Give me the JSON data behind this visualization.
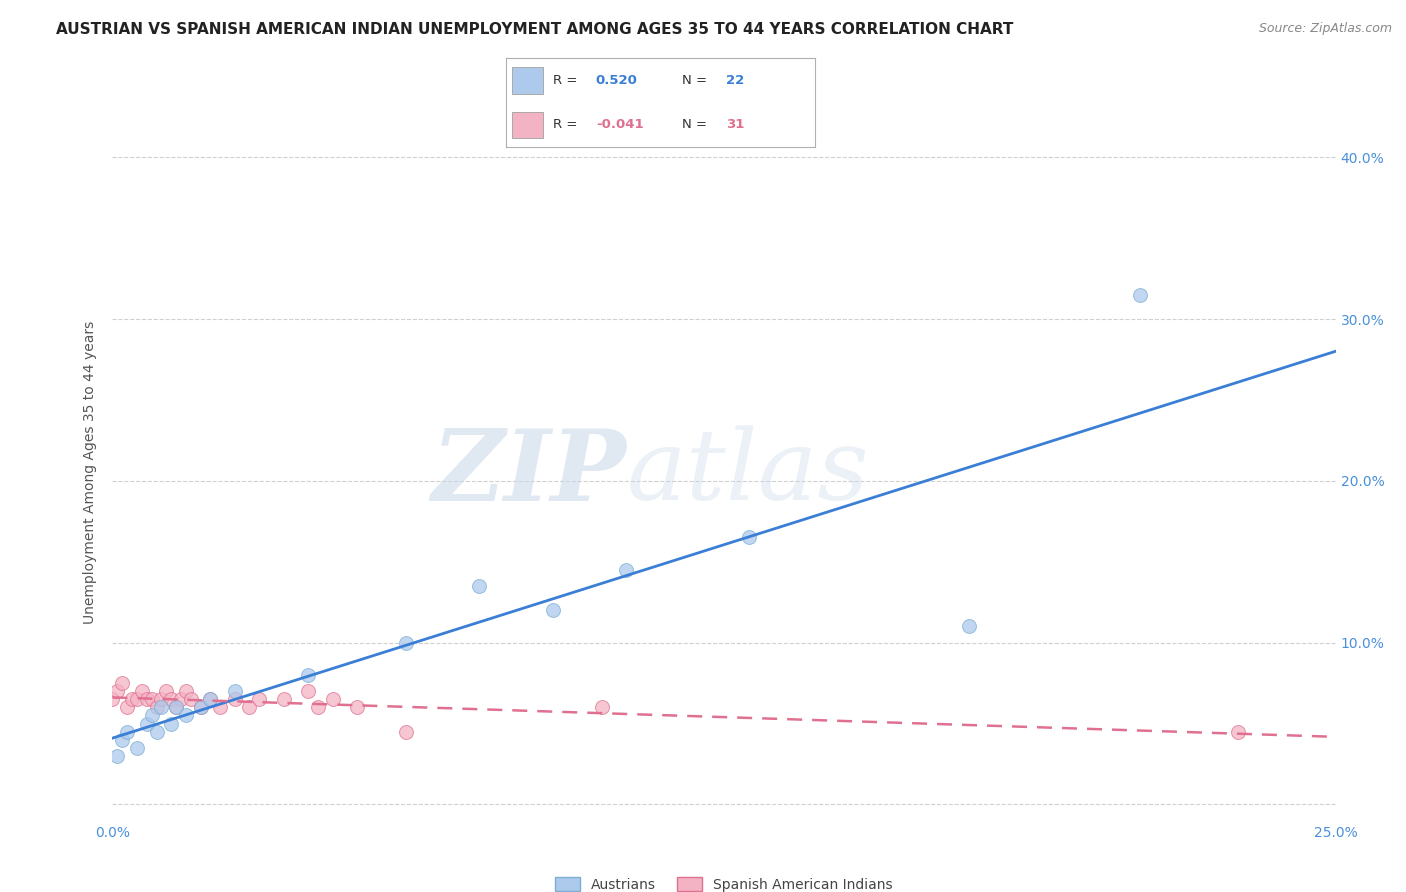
{
  "title": "AUSTRIAN VS SPANISH AMERICAN INDIAN UNEMPLOYMENT AMONG AGES 35 TO 44 YEARS CORRELATION CHART",
  "source": "Source: ZipAtlas.com",
  "ylabel": "Unemployment Among Ages 35 to 44 years",
  "xlim": [
    0.0,
    0.25
  ],
  "ylim": [
    -0.01,
    0.42
  ],
  "watermark_zip": "ZIP",
  "watermark_atlas": "atlas",
  "background_color": "#ffffff",
  "grid_color": "#d0d0d0",
  "austrian_dot_color": "#adc9eb",
  "austrian_dot_edge": "#7bafd4",
  "spanish_dot_color": "#f4b3c5",
  "spanish_dot_edge": "#e07090",
  "austrian_line_color": "#3a7fd5",
  "spanish_line_color": "#e07090",
  "title_fontsize": 11,
  "axis_fontsize": 10,
  "legend_fontsize": 10,
  "aus_R": "0.520",
  "aus_N": "22",
  "spa_R": "-0.041",
  "spa_N": "31",
  "austrians_x": [
    0.001,
    0.002,
    0.003,
    0.005,
    0.007,
    0.008,
    0.009,
    0.01,
    0.012,
    0.013,
    0.015,
    0.018,
    0.02,
    0.025,
    0.04,
    0.06,
    0.075,
    0.09,
    0.105,
    0.13,
    0.175,
    0.21
  ],
  "austrians_y": [
    0.03,
    0.04,
    0.045,
    0.035,
    0.05,
    0.055,
    0.045,
    0.06,
    0.05,
    0.06,
    0.055,
    0.06,
    0.065,
    0.07,
    0.08,
    0.1,
    0.135,
    0.12,
    0.145,
    0.165,
    0.11,
    0.315
  ],
  "spanish_x": [
    0.0,
    0.001,
    0.002,
    0.003,
    0.004,
    0.005,
    0.006,
    0.007,
    0.008,
    0.009,
    0.01,
    0.011,
    0.012,
    0.013,
    0.014,
    0.015,
    0.016,
    0.018,
    0.02,
    0.022,
    0.025,
    0.028,
    0.03,
    0.035,
    0.04,
    0.042,
    0.045,
    0.05,
    0.06,
    0.1,
    0.23
  ],
  "spanish_y": [
    0.065,
    0.07,
    0.075,
    0.06,
    0.065,
    0.065,
    0.07,
    0.065,
    0.065,
    0.06,
    0.065,
    0.07,
    0.065,
    0.06,
    0.065,
    0.07,
    0.065,
    0.06,
    0.065,
    0.06,
    0.065,
    0.06,
    0.065,
    0.065,
    0.07,
    0.06,
    0.065,
    0.06,
    0.045,
    0.06,
    0.045
  ]
}
